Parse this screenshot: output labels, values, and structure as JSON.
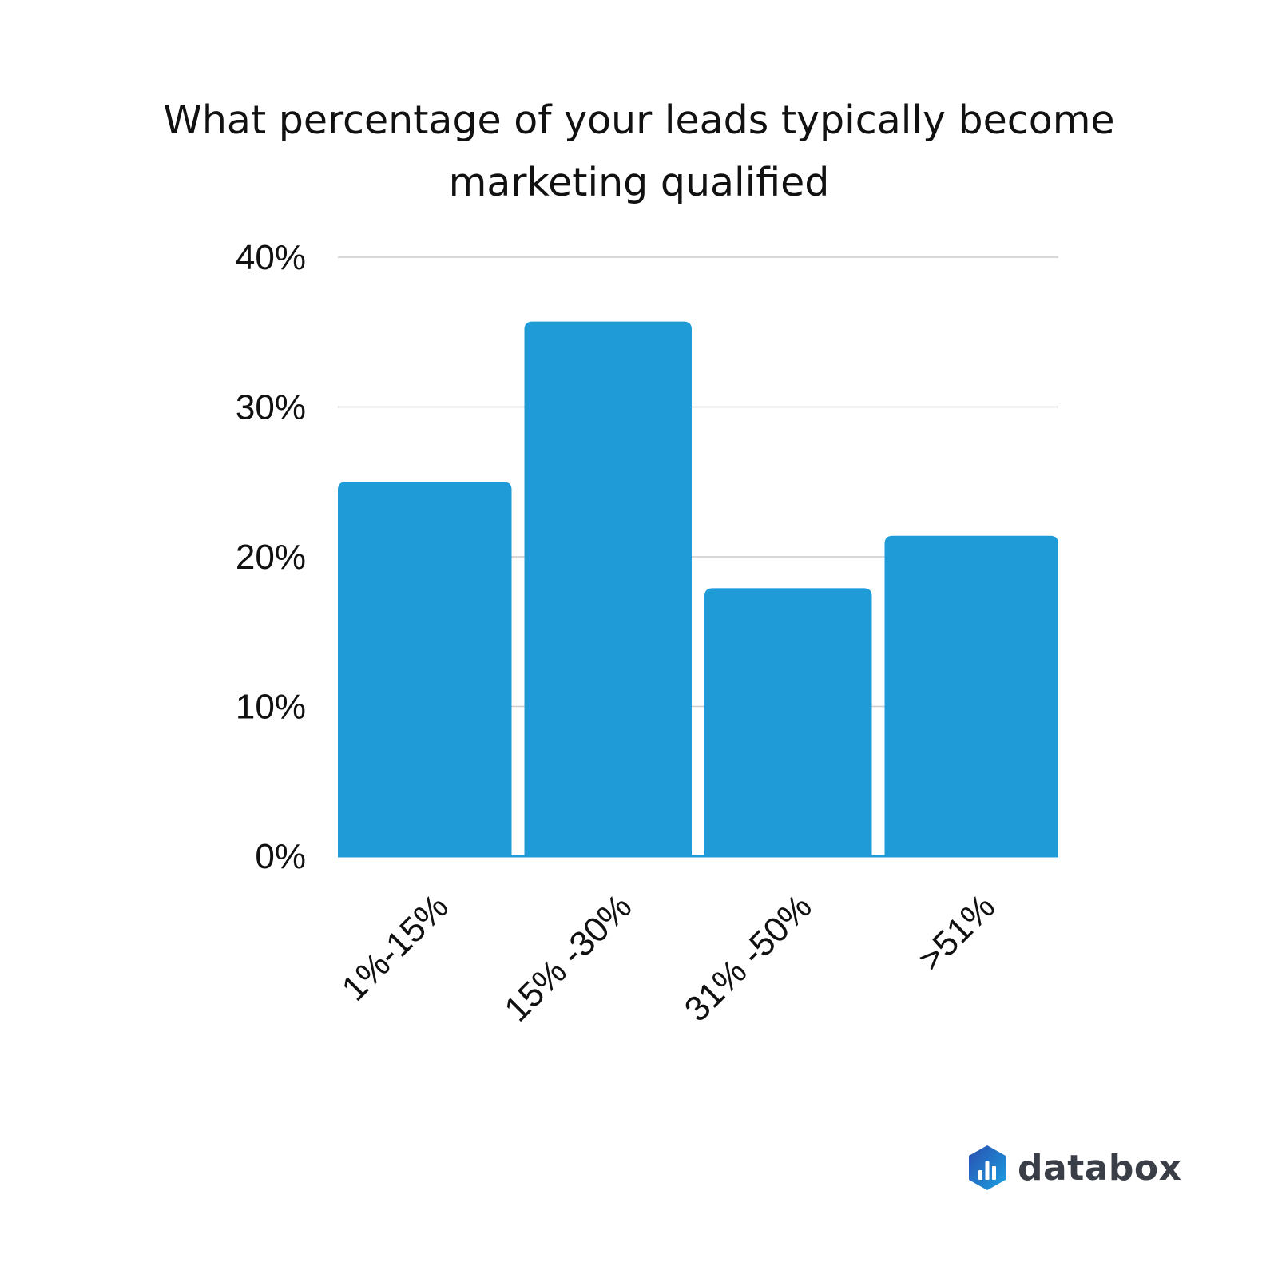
{
  "title_lines": [
    "What percentage of your leads typically become",
    "marketing qualified"
  ],
  "brand": {
    "name": "databox",
    "icon": "databox-logo-icon"
  },
  "colors": {
    "bar": "#1f9bd7",
    "grid": "#cccccc",
    "baseline": "#1f9bd7"
  },
  "chart_data": {
    "type": "bar",
    "title": "What percentage of your leads typically become marketing qualified",
    "categories": [
      "1%-15%",
      "15% -30%",
      "31% -50%",
      ">51%"
    ],
    "values": [
      25,
      35.7,
      17.9,
      21.4
    ],
    "ylim": [
      0,
      40
    ],
    "yticks": [
      0,
      10,
      20,
      30,
      40
    ],
    "ytick_labels": [
      "0%",
      "10%",
      "20%",
      "30%",
      "40%"
    ],
    "grid": true,
    "legend": "none"
  }
}
